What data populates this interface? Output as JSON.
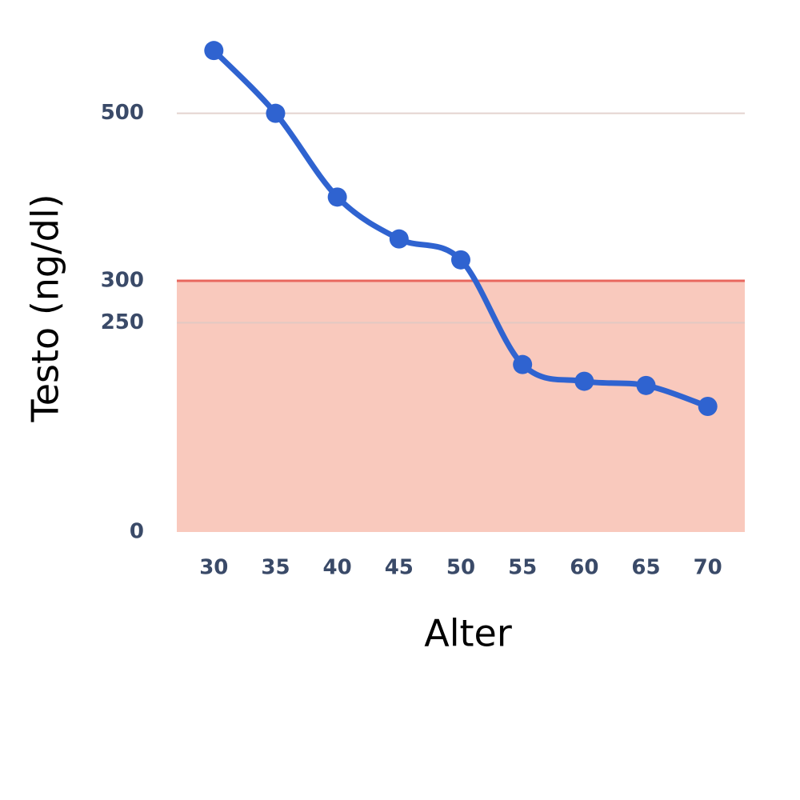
{
  "chart_data": {
    "type": "line",
    "x_label": "Alter",
    "y_label": "Testo (ng/dl)",
    "x": [
      30,
      35,
      40,
      45,
      50,
      55,
      60,
      65,
      70
    ],
    "series": [
      {
        "color": "#2f63d0",
        "values": [
          575,
          500,
          400,
          350,
          325,
          200,
          180,
          175,
          150
        ]
      }
    ],
    "xlim": [
      27,
      73
    ],
    "xticks": [
      30,
      35,
      40,
      45,
      50,
      55,
      60,
      65,
      70
    ],
    "ylim": [
      0,
      600
    ],
    "yticks": [
      0,
      250,
      300,
      500
    ],
    "grid": true,
    "band": {
      "from": 0,
      "to": 300,
      "color": "#f9c9bd",
      "edge_color": "#e8675e"
    }
  }
}
